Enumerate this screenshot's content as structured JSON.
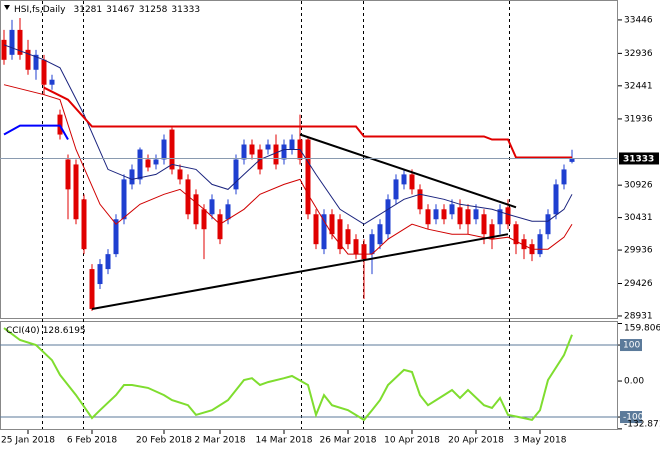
{
  "chart_data": {
    "type": "candlestick",
    "symbol": "HSI,fs,Daily",
    "colors": {
      "up": "#1f3fd0",
      "down": "#e00000"
    },
    "candles": [
      [
        33142,
        33294,
        32762,
        32838
      ],
      [
        32914,
        33446,
        32838,
        33294
      ],
      [
        33294,
        33476,
        32838,
        32914
      ],
      [
        32990,
        33142,
        32610,
        32686
      ],
      [
        32686,
        32990,
        32534,
        32914
      ],
      [
        32838,
        32914,
        32306,
        32458
      ],
      [
        32458,
        32610,
        32382,
        32534
      ],
      [
        32002,
        32078,
        31622,
        31698
      ],
      [
        31318,
        31394,
        30406,
        30862
      ],
      [
        31242,
        31318,
        30330,
        30406
      ],
      [
        30710,
        30786,
        29874,
        29950
      ],
      [
        29646,
        29722,
        29008,
        29038
      ],
      [
        29418,
        29798,
        29342,
        29722
      ],
      [
        29646,
        29950,
        29570,
        29874
      ],
      [
        29874,
        30482,
        29828,
        30406
      ],
      [
        30406,
        31090,
        30330,
        31014
      ],
      [
        30938,
        31242,
        30862,
        31166
      ],
      [
        31014,
        31500,
        30938,
        31470
      ],
      [
        31318,
        31394,
        31136,
        31196
      ],
      [
        31242,
        31394,
        31166,
        31318
      ],
      [
        31318,
        31698,
        31242,
        31622
      ],
      [
        31774,
        31804,
        31090,
        31166
      ],
      [
        31166,
        31242,
        30938,
        31014
      ],
      [
        31014,
        31090,
        30406,
        30482
      ],
      [
        30786,
        30862,
        30254,
        30330
      ],
      [
        30558,
        30634,
        29798,
        30254
      ],
      [
        30482,
        30786,
        30406,
        30710
      ],
      [
        30482,
        30558,
        30026,
        30102
      ],
      [
        30406,
        30710,
        30330,
        30634
      ],
      [
        30862,
        31394,
        30786,
        31318
      ],
      [
        31318,
        31622,
        31242,
        31546
      ],
      [
        31546,
        31622,
        31318,
        31394
      ],
      [
        31470,
        31546,
        31090,
        31166
      ],
      [
        31470,
        31622,
        31394,
        31546
      ],
      [
        31546,
        31698,
        31166,
        31242
      ],
      [
        31318,
        31622,
        31242,
        31546
      ],
      [
        31470,
        31698,
        31394,
        31622
      ],
      [
        31622,
        32002,
        31242,
        31318
      ],
      [
        31622,
        31652,
        30406,
        30482
      ],
      [
        30482,
        30558,
        29950,
        30026
      ],
      [
        29950,
        30558,
        29874,
        30482
      ],
      [
        30482,
        30558,
        30102,
        30178
      ],
      [
        30406,
        30482,
        29874,
        29950
      ],
      [
        30254,
        30330,
        29950,
        30026
      ],
      [
        30102,
        30178,
        29798,
        29874
      ],
      [
        30026,
        30102,
        29190,
        29798
      ],
      [
        29874,
        30254,
        29570,
        30178
      ],
      [
        30026,
        30406,
        29950,
        30330
      ],
      [
        30178,
        30786,
        30102,
        30710
      ],
      [
        30710,
        31090,
        30634,
        31014
      ],
      [
        30938,
        31166,
        30862,
        31090
      ],
      [
        31090,
        31166,
        30786,
        30862
      ],
      [
        30862,
        30938,
        30482,
        30558
      ],
      [
        30558,
        30634,
        30254,
        30330
      ],
      [
        30406,
        30634,
        30330,
        30558
      ],
      [
        30558,
        30634,
        30330,
        30406
      ],
      [
        30482,
        30710,
        30406,
        30634
      ],
      [
        30588,
        30710,
        30254,
        30330
      ],
      [
        30558,
        30634,
        30178,
        30330
      ],
      [
        30406,
        30634,
        30330,
        30558
      ],
      [
        30482,
        30558,
        30026,
        30178
      ],
      [
        30330,
        30406,
        29950,
        30102
      ],
      [
        30330,
        30634,
        30178,
        30558
      ],
      [
        30588,
        30710,
        30254,
        30330
      ],
      [
        30330,
        30376,
        29874,
        30026
      ],
      [
        30102,
        30178,
        29798,
        29950
      ],
      [
        30026,
        30102,
        29768,
        29874
      ],
      [
        29874,
        30254,
        29828,
        30178
      ],
      [
        30178,
        30558,
        30102,
        30482
      ],
      [
        30482,
        31014,
        30406,
        30938
      ],
      [
        30938,
        31242,
        30862,
        31166
      ],
      [
        31281,
        31467,
        31258,
        31333
      ]
    ],
    "xlim": [
      -0.5,
      76.75
    ],
    "xticks": [
      {
        "value": 3,
        "label": "25 Jan 2018"
      },
      {
        "value": 11,
        "label": "6 Feb 2018"
      },
      {
        "value": 20,
        "label": "20 Feb 2018"
      },
      {
        "value": 27,
        "label": "2 Mar 2018"
      },
      {
        "value": 35,
        "label": "14 Mar 2018"
      },
      {
        "value": 43,
        "label": "26 Mar 2018"
      },
      {
        "value": 51,
        "label": "10 Apr 2018"
      },
      {
        "value": 59,
        "label": "20 Apr 2018"
      },
      {
        "value": 67,
        "label": "3 May 2018"
      }
    ],
    "ylim": [
      28900,
      33750
    ],
    "yticks": [
      33446,
      32936,
      32441,
      31936,
      30926,
      30431,
      29936,
      29426,
      28931
    ],
    "overlays": [
      {
        "color": "#1a237e",
        "line_width": 1,
        "x": [
          0,
          5,
          7,
          10,
          13,
          16,
          19,
          21,
          24,
          26,
          28,
          30,
          32,
          35,
          37,
          39,
          42,
          45,
          47,
          50,
          52,
          55,
          57,
          61,
          63,
          66,
          68,
          70,
          71
        ],
        "values": [
          33066,
          32838,
          32716,
          32002,
          31166,
          31014,
          31090,
          31242,
          31166,
          30938,
          30862,
          31090,
          31318,
          31470,
          31470,
          31090,
          30558,
          30330,
          30482,
          30710,
          30786,
          30710,
          30634,
          30558,
          30482,
          30376,
          30376,
          30558,
          30786
        ]
      },
      {
        "color": "#d00000",
        "line_width": 1,
        "x": [
          0,
          5,
          7,
          9,
          12,
          14,
          17,
          20,
          22,
          25,
          27,
          30,
          32,
          35,
          37,
          38,
          41,
          43,
          46,
          48,
          51,
          53,
          56,
          58,
          61,
          63,
          66,
          68,
          70,
          71
        ],
        "values": [
          32458,
          32306,
          32230,
          31470,
          30634,
          30330,
          30634,
          30786,
          30862,
          30558,
          30330,
          30558,
          30786,
          30938,
          31014,
          30786,
          30178,
          29874,
          29874,
          30102,
          30330,
          30254,
          30178,
          30178,
          30102,
          30132,
          29950,
          29950,
          30132,
          30330
        ]
      },
      {
        "color": "#e00000",
        "line_width": 2,
        "x": [
          5,
          8,
          11,
          44,
          45,
          60,
          61,
          63,
          64,
          71
        ],
        "values": [
          32412,
          32230,
          31820,
          31820,
          31668,
          31668,
          31622,
          31622,
          31348,
          31348
        ]
      },
      {
        "color": "#0000ff",
        "line_width": 2,
        "x": [
          0,
          2,
          7,
          8
        ],
        "values": [
          31698,
          31835,
          31835,
          31622
        ]
      },
      {
        "color": "#000000",
        "line_width": 2,
        "x": [
          37,
          64
        ],
        "values": [
          31698,
          30588
        ]
      },
      {
        "color": "#000000",
        "line_width": 2,
        "x": [
          11,
          63
        ],
        "values": [
          29038,
          30178
        ]
      }
    ],
    "indicator": {
      "name": "CCI(40)",
      "color": "#7fdd2f",
      "x": [
        0,
        2,
        4,
        6,
        7,
        9,
        11,
        12,
        14,
        15,
        16,
        18,
        20,
        21,
        23,
        24,
        26,
        28,
        30,
        31,
        32,
        33,
        35,
        36,
        38,
        39,
        40,
        41,
        43,
        45,
        46,
        47,
        48,
        50,
        51,
        52,
        53,
        55,
        56,
        57,
        58,
        60,
        61,
        62,
        63,
        65,
        66,
        67,
        68,
        70,
        71
      ],
      "values": [
        147,
        114,
        100,
        58,
        17,
        -39,
        -103,
        -81,
        -39,
        -11,
        -11,
        -19,
        -39,
        -53,
        -67,
        -94,
        -81,
        -53,
        3,
        8,
        -11,
        -3,
        8,
        14,
        -11,
        -94,
        -39,
        -67,
        -81,
        -108,
        -81,
        -53,
        -11,
        31,
        25,
        -39,
        -67,
        -39,
        -25,
        -47,
        -25,
        -67,
        -75,
        -47,
        -94,
        -103,
        -108,
        -81,
        3,
        72,
        128.6195
      ],
      "ylim": [
        -136,
        164
      ],
      "yticks": [
        159.8066,
        100,
        {
          "value": 0,
          "label": "0.00"
        },
        -100,
        -132.871
      ],
      "levels": [
        100,
        -100
      ],
      "level_color": "#5b7a9a"
    }
  }
}
